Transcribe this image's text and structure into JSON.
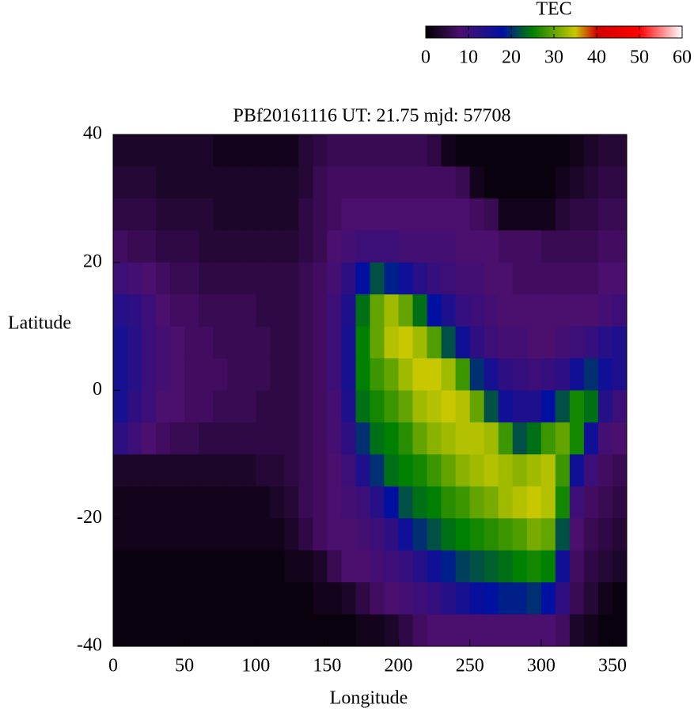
{
  "chart_data": {
    "type": "heatmap",
    "title": "PBf20161116  UT: 21.75  mjd: 57708",
    "x_label": "Longitude",
    "y_label": "Latitude",
    "colorbar_label": "TEC",
    "xlim": [
      0,
      360
    ],
    "xticks": [
      0,
      50,
      100,
      150,
      200,
      250,
      300,
      350
    ],
    "ylim": [
      -40,
      40
    ],
    "yticks": [
      -40,
      -20,
      0,
      20,
      40
    ],
    "clim": [
      0,
      60
    ],
    "cticks": [
      0,
      10,
      20,
      30,
      40,
      50,
      60
    ],
    "colormap": [
      [
        0,
        "#000000"
      ],
      [
        8,
        "#4b0f6e"
      ],
      [
        18,
        "#0010a0"
      ],
      [
        25,
        "#008000"
      ],
      [
        35,
        "#c8c800"
      ],
      [
        40,
        "#d00000"
      ],
      [
        50,
        "#ff0000"
      ],
      [
        60,
        "#ffffff"
      ]
    ],
    "x": [
      5,
      15,
      25,
      35,
      45,
      55,
      65,
      75,
      85,
      95,
      105,
      115,
      125,
      135,
      145,
      155,
      165,
      175,
      185,
      195,
      205,
      215,
      225,
      235,
      245,
      255,
      265,
      275,
      285,
      295,
      305,
      315,
      325,
      335,
      345,
      355
    ],
    "y": [
      37.5,
      32.5,
      27.5,
      22.5,
      17.5,
      12.5,
      7.5,
      2.5,
      -2.5,
      -7.5,
      -12.5,
      -17.5,
      -22.5,
      -27.5,
      -32.5,
      -37.5
    ],
    "z": [
      [
        3,
        3,
        3,
        3,
        3,
        3,
        3,
        2,
        2,
        2,
        2,
        2,
        2,
        4,
        5,
        6,
        6,
        6,
        6,
        6,
        6,
        6,
        5,
        2,
        1,
        1,
        1,
        1,
        1,
        1,
        1,
        1,
        2,
        3,
        4,
        4
      ],
      [
        4,
        4,
        4,
        3,
        3,
        3,
        3,
        3,
        3,
        3,
        3,
        3,
        3,
        4,
        6,
        7,
        7,
        7,
        7,
        7,
        7,
        7,
        7,
        7,
        6,
        2,
        1,
        1,
        1,
        1,
        1,
        2,
        3,
        4,
        5,
        5
      ],
      [
        5,
        5,
        5,
        4,
        4,
        4,
        4,
        3,
        3,
        3,
        3,
        3,
        3,
        5,
        6,
        7,
        8,
        8,
        8,
        8,
        8,
        8,
        8,
        8,
        8,
        7,
        6,
        2,
        2,
        2,
        2,
        4,
        5,
        5,
        6,
        6
      ],
      [
        7,
        6,
        6,
        5,
        5,
        5,
        4,
        4,
        4,
        4,
        4,
        4,
        4,
        5,
        6,
        8,
        9,
        10,
        10,
        10,
        9,
        9,
        9,
        9,
        8,
        8,
        8,
        7,
        7,
        7,
        6,
        6,
        6,
        6,
        7,
        7
      ],
      [
        10,
        9,
        8,
        7,
        6,
        6,
        5,
        5,
        5,
        5,
        5,
        5,
        5,
        6,
        7,
        9,
        12,
        18,
        22,
        19,
        16,
        13,
        11,
        10,
        9,
        9,
        8,
        8,
        7,
        7,
        7,
        7,
        7,
        7,
        8,
        8
      ],
      [
        13,
        12,
        10,
        8,
        7,
        7,
        6,
        6,
        6,
        6,
        5,
        5,
        5,
        6,
        7,
        10,
        14,
        24,
        30,
        33,
        30,
        24,
        18,
        14,
        11,
        10,
        9,
        8,
        8,
        8,
        8,
        8,
        8,
        8,
        9,
        10
      ],
      [
        15,
        13,
        10,
        9,
        8,
        7,
        7,
        6,
        6,
        6,
        6,
        5,
        5,
        6,
        7,
        10,
        15,
        25,
        30,
        34,
        35,
        33,
        29,
        22,
        16,
        12,
        10,
        9,
        9,
        8,
        8,
        9,
        10,
        11,
        13,
        14
      ],
      [
        15,
        13,
        10,
        9,
        8,
        7,
        7,
        7,
        6,
        6,
        6,
        5,
        5,
        6,
        7,
        10,
        15,
        25,
        28,
        30,
        33,
        35,
        35,
        33,
        28,
        20,
        15,
        12,
        11,
        10,
        11,
        12,
        16,
        20,
        16,
        14
      ],
      [
        15,
        12,
        10,
        8,
        8,
        7,
        7,
        6,
        6,
        6,
        5,
        5,
        5,
        6,
        7,
        9,
        14,
        24,
        26,
        28,
        30,
        33,
        34,
        35,
        34,
        30,
        22,
        16,
        14,
        14,
        18,
        22,
        26,
        24,
        13,
        10
      ],
      [
        12,
        10,
        8,
        7,
        6,
        6,
        5,
        5,
        5,
        5,
        5,
        5,
        5,
        6,
        7,
        9,
        12,
        20,
        24,
        25,
        27,
        30,
        32,
        33,
        34,
        34,
        33,
        28,
        22,
        24,
        28,
        30,
        26,
        16,
        9,
        8
      ],
      [
        3,
        3,
        3,
        3,
        3,
        3,
        3,
        3,
        3,
        3,
        4,
        4,
        5,
        6,
        7,
        8,
        10,
        14,
        20,
        24,
        25,
        26,
        28,
        30,
        32,
        33,
        34,
        33,
        32,
        33,
        34,
        28,
        16,
        10,
        7,
        6
      ],
      [
        2,
        2,
        2,
        2,
        2,
        2,
        2,
        2,
        2,
        2,
        2,
        3,
        4,
        6,
        7,
        8,
        9,
        10,
        13,
        18,
        22,
        24,
        25,
        27,
        28,
        30,
        31,
        33,
        34,
        35,
        34,
        26,
        10,
        7,
        6,
        5
      ],
      [
        2,
        2,
        2,
        2,
        2,
        2,
        2,
        2,
        2,
        2,
        2,
        2,
        3,
        5,
        7,
        8,
        8,
        9,
        10,
        12,
        16,
        20,
        22,
        24,
        25,
        26,
        27,
        28,
        29,
        31,
        30,
        22,
        8,
        6,
        5,
        4
      ],
      [
        1,
        1,
        1,
        1,
        1,
        1,
        1,
        1,
        1,
        1,
        1,
        1,
        2,
        2,
        3,
        6,
        8,
        8,
        9,
        10,
        11,
        13,
        16,
        19,
        21,
        22,
        23,
        24,
        25,
        26,
        25,
        16,
        7,
        5,
        4,
        3
      ],
      [
        1,
        1,
        1,
        1,
        1,
        1,
        1,
        1,
        1,
        1,
        1,
        1,
        1,
        1,
        2,
        2,
        3,
        5,
        7,
        8,
        9,
        10,
        11,
        13,
        15,
        17,
        18,
        19,
        19,
        20,
        18,
        12,
        6,
        4,
        2,
        1
      ],
      [
        1,
        1,
        1,
        1,
        1,
        1,
        1,
        1,
        1,
        1,
        1,
        1,
        1,
        1,
        1,
        1,
        1,
        2,
        2,
        3,
        5,
        7,
        8,
        8,
        8,
        8,
        8,
        8,
        8,
        8,
        8,
        7,
        3,
        2,
        1,
        1
      ]
    ]
  }
}
